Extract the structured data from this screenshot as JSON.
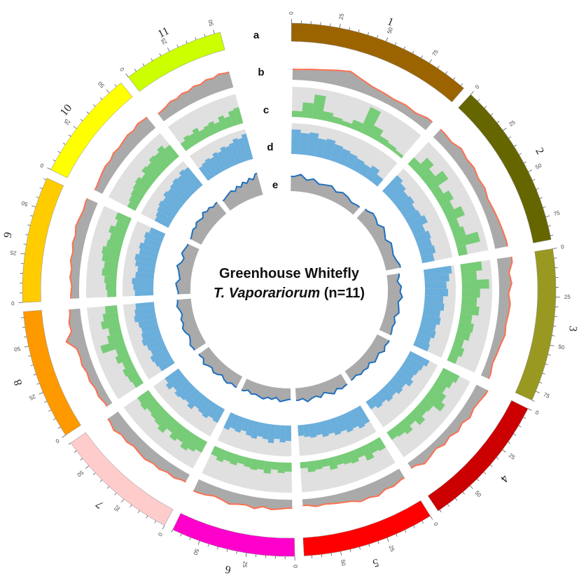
{
  "chart_data": {
    "type": "circos",
    "title_line1": "Greenhouse Whitefly",
    "title_line2_italic": "T. Vaporariorum",
    "title_line2_rest": " (n=11)",
    "track_labels": [
      "a",
      "b",
      "c",
      "d",
      "e"
    ],
    "tick_step_minor": 5,
    "tick_step_major": 25,
    "colors": {
      "track_b_line": "#FF7050",
      "track_b_fill": "#AAAAAA",
      "track_c_bars": "#77CC77",
      "track_band_bg": "#E0E0E0",
      "track_d_bars": "#6AAEDC",
      "track_e_line": "#1F6FBF",
      "track_e_fill": "#AAAAAA"
    },
    "chromosomes": [
      {
        "name": "1",
        "length": 97,
        "color": "#9B6400",
        "b": [
          0.5,
          0.55,
          0.6,
          0.7,
          0.8,
          0.6,
          0.45,
          0.4,
          0.35,
          0.4,
          0.35,
          0.5
        ],
        "c": [
          0.2,
          0.5,
          0.8,
          0.3,
          0.2,
          0.15,
          0.3,
          0.9,
          0.4,
          0.2,
          0.15,
          0.1
        ],
        "d": [
          0.8,
          0.7,
          0.75,
          0.6,
          0.65,
          0.55,
          0.5,
          0.45,
          0.4,
          0.35,
          0.45,
          0.3
        ],
        "e": [
          0.6,
          0.7,
          0.5,
          0.6,
          0.45,
          0.5,
          0.55,
          0.4,
          0.5,
          0.45,
          0.35,
          0.4
        ]
      },
      {
        "name": "2",
        "length": 87,
        "color": "#666600",
        "b": [
          0.5,
          0.45,
          0.6,
          0.5,
          0.55,
          0.45,
          0.5,
          0.4,
          0.45,
          0.5,
          0.55,
          0.6
        ],
        "c": [
          0.3,
          0.6,
          0.4,
          0.7,
          0.3,
          0.5,
          0.35,
          0.6,
          0.3,
          0.4,
          0.8,
          0.3
        ],
        "d": [
          0.7,
          0.6,
          0.5,
          0.55,
          0.45,
          0.5,
          0.6,
          0.4,
          0.5,
          0.45,
          0.5,
          0.4
        ],
        "e": [
          0.5,
          0.6,
          0.55,
          0.45,
          0.6,
          0.5,
          0.4,
          0.55,
          0.5,
          0.45,
          0.5,
          0.6
        ]
      },
      {
        "name": "3",
        "length": 80,
        "color": "#999922",
        "b": [
          0.7,
          0.5,
          0.6,
          0.45,
          0.55,
          0.5,
          0.45,
          0.5,
          0.4,
          0.35,
          0.3,
          0.4
        ],
        "c": [
          0.7,
          0.5,
          0.9,
          0.6,
          0.5,
          0.6,
          0.4,
          0.5,
          0.45,
          0.3,
          0.4,
          0.3
        ],
        "d": [
          0.9,
          0.8,
          0.7,
          0.75,
          0.6,
          0.65,
          0.55,
          0.6,
          0.5,
          0.55,
          0.45,
          0.5
        ],
        "e": [
          0.5,
          0.4,
          0.55,
          0.5,
          0.6,
          0.45,
          0.5,
          0.55,
          0.4,
          0.5,
          0.45,
          0.5
        ]
      },
      {
        "name": "4",
        "length": 71,
        "color": "#CC0000",
        "b": [
          0.6,
          0.5,
          0.45,
          0.55,
          0.4,
          0.5,
          0.35,
          0.45,
          0.3,
          0.4,
          0.5,
          0.3
        ],
        "c": [
          0.6,
          0.5,
          0.4,
          0.55,
          0.7,
          0.4,
          0.35,
          0.5,
          0.3,
          0.45,
          0.35,
          0.3
        ],
        "d": [
          0.7,
          0.6,
          0.55,
          0.5,
          0.6,
          0.45,
          0.5,
          0.4,
          0.45,
          0.35,
          0.4,
          0.3
        ],
        "e": [
          0.55,
          0.5,
          0.6,
          0.45,
          0.5,
          0.55,
          0.4,
          0.5,
          0.45,
          0.5,
          0.4,
          0.45
        ]
      },
      {
        "name": "5",
        "length": 69,
        "color": "#FF0000",
        "b": [
          0.5,
          0.6,
          0.55,
          0.7,
          0.6,
          0.65,
          0.5,
          0.45,
          0.4,
          0.35,
          0.4,
          0.3
        ],
        "c": [
          0.4,
          0.35,
          0.5,
          0.3,
          0.4,
          0.35,
          0.3,
          0.4,
          0.25,
          0.3,
          0.35,
          0.2
        ],
        "d": [
          0.6,
          0.65,
          0.55,
          0.6,
          0.5,
          0.55,
          0.45,
          0.5,
          0.4,
          0.45,
          0.4,
          0.35
        ],
        "e": [
          0.5,
          0.55,
          0.45,
          0.6,
          0.5,
          0.4,
          0.55,
          0.45,
          0.5,
          0.6,
          0.45,
          0.5
        ]
      },
      {
        "name": "6",
        "length": 65,
        "color": "#FF00CC",
        "b": [
          0.4,
          0.45,
          0.5,
          0.4,
          0.55,
          0.45,
          0.5,
          0.6,
          0.5,
          0.45,
          0.55,
          0.6
        ],
        "c": [
          0.3,
          0.35,
          0.25,
          0.4,
          0.3,
          0.35,
          0.3,
          0.25,
          0.35,
          0.3,
          0.4,
          0.3
        ],
        "d": [
          0.5,
          0.55,
          0.45,
          0.6,
          0.5,
          0.45,
          0.55,
          0.5,
          0.4,
          0.5,
          0.45,
          0.55
        ],
        "e": [
          0.45,
          0.5,
          0.55,
          0.4,
          0.5,
          0.45,
          0.55,
          0.5,
          0.45,
          0.5,
          0.4,
          0.5
        ]
      },
      {
        "name": "7",
        "length": 65,
        "color": "#FFCCCC",
        "b": [
          0.4,
          0.5,
          0.45,
          0.55,
          0.5,
          0.6,
          0.55,
          0.5,
          0.6,
          0.55,
          0.7,
          0.6
        ],
        "c": [
          0.4,
          0.5,
          0.6,
          0.45,
          0.55,
          0.4,
          0.6,
          0.5,
          0.45,
          0.4,
          0.5,
          0.45
        ],
        "d": [
          0.5,
          0.45,
          0.55,
          0.5,
          0.45,
          0.6,
          0.5,
          0.55,
          0.6,
          0.5,
          0.65,
          0.55
        ],
        "e": [
          0.5,
          0.45,
          0.55,
          0.5,
          0.4,
          0.5,
          0.55,
          0.45,
          0.5,
          0.6,
          0.45,
          0.5
        ]
      },
      {
        "name": "8",
        "length": 68,
        "color": "#FF9900",
        "b": [
          0.3,
          0.4,
          0.35,
          0.45,
          0.4,
          0.5,
          0.45,
          0.5,
          0.9,
          0.55,
          0.6,
          0.5
        ],
        "c": [
          0.3,
          0.35,
          0.4,
          0.3,
          0.45,
          0.35,
          0.8,
          0.5,
          0.4,
          0.6,
          0.5,
          0.4
        ],
        "d": [
          0.5,
          0.55,
          0.6,
          0.5,
          0.55,
          0.65,
          0.6,
          0.55,
          0.6,
          0.7,
          0.65,
          0.6
        ],
        "e": [
          0.55,
          0.6,
          0.5,
          0.45,
          0.55,
          0.6,
          0.5,
          0.55,
          0.45,
          0.5,
          0.6,
          0.55
        ]
      },
      {
        "name": "9",
        "length": 66,
        "color": "#FFCC00",
        "b": [
          0.4,
          0.35,
          0.45,
          0.4,
          0.5,
          0.45,
          0.55,
          0.5,
          0.6,
          0.55,
          0.5,
          0.55
        ],
        "c": [
          0.3,
          0.35,
          0.4,
          0.5,
          0.45,
          0.55,
          0.6,
          0.5,
          0.45,
          0.55,
          0.4,
          0.5
        ],
        "d": [
          0.6,
          0.65,
          0.7,
          0.6,
          0.55,
          0.65,
          0.7,
          0.6,
          0.65,
          0.55,
          0.6,
          0.5
        ],
        "e": [
          0.5,
          0.55,
          0.6,
          0.45,
          0.5,
          0.55,
          0.65,
          0.5,
          0.45,
          0.6,
          0.55,
          0.5
        ]
      },
      {
        "name": "10",
        "length": 58,
        "color": "#FFFF00",
        "b": [
          0.4,
          0.45,
          0.5,
          0.55,
          0.5,
          0.6,
          0.55,
          0.6,
          0.65,
          0.6,
          0.7,
          0.65
        ],
        "c": [
          0.3,
          0.35,
          0.4,
          0.45,
          0.5,
          0.4,
          0.55,
          0.5,
          0.6,
          0.55,
          0.65,
          0.5
        ],
        "d": [
          0.5,
          0.55,
          0.6,
          0.65,
          0.6,
          0.7,
          0.65,
          0.7,
          0.75,
          0.7,
          0.8,
          0.75
        ],
        "e": [
          0.5,
          0.55,
          0.6,
          0.55,
          0.65,
          0.6,
          0.55,
          0.7,
          0.6,
          0.65,
          0.55,
          0.6
        ]
      },
      {
        "name": "11",
        "length": 53,
        "color": "#CCFF00",
        "b": [
          0.45,
          0.5,
          0.6,
          0.55,
          0.65,
          0.6,
          0.7,
          0.65,
          0.75,
          0.7,
          0.8,
          0.75
        ],
        "c": [
          0.3,
          0.4,
          0.35,
          0.45,
          0.3,
          0.35,
          0.4,
          0.3,
          0.45,
          0.35,
          0.5,
          0.55
        ],
        "d": [
          0.5,
          0.55,
          0.6,
          0.55,
          0.65,
          0.6,
          0.7,
          0.65,
          0.7,
          0.8,
          0.75,
          0.85
        ],
        "e": [
          0.5,
          0.55,
          0.6,
          0.65,
          0.55,
          0.7,
          0.6,
          0.75,
          0.65,
          0.8,
          0.7,
          0.9
        ]
      }
    ]
  }
}
